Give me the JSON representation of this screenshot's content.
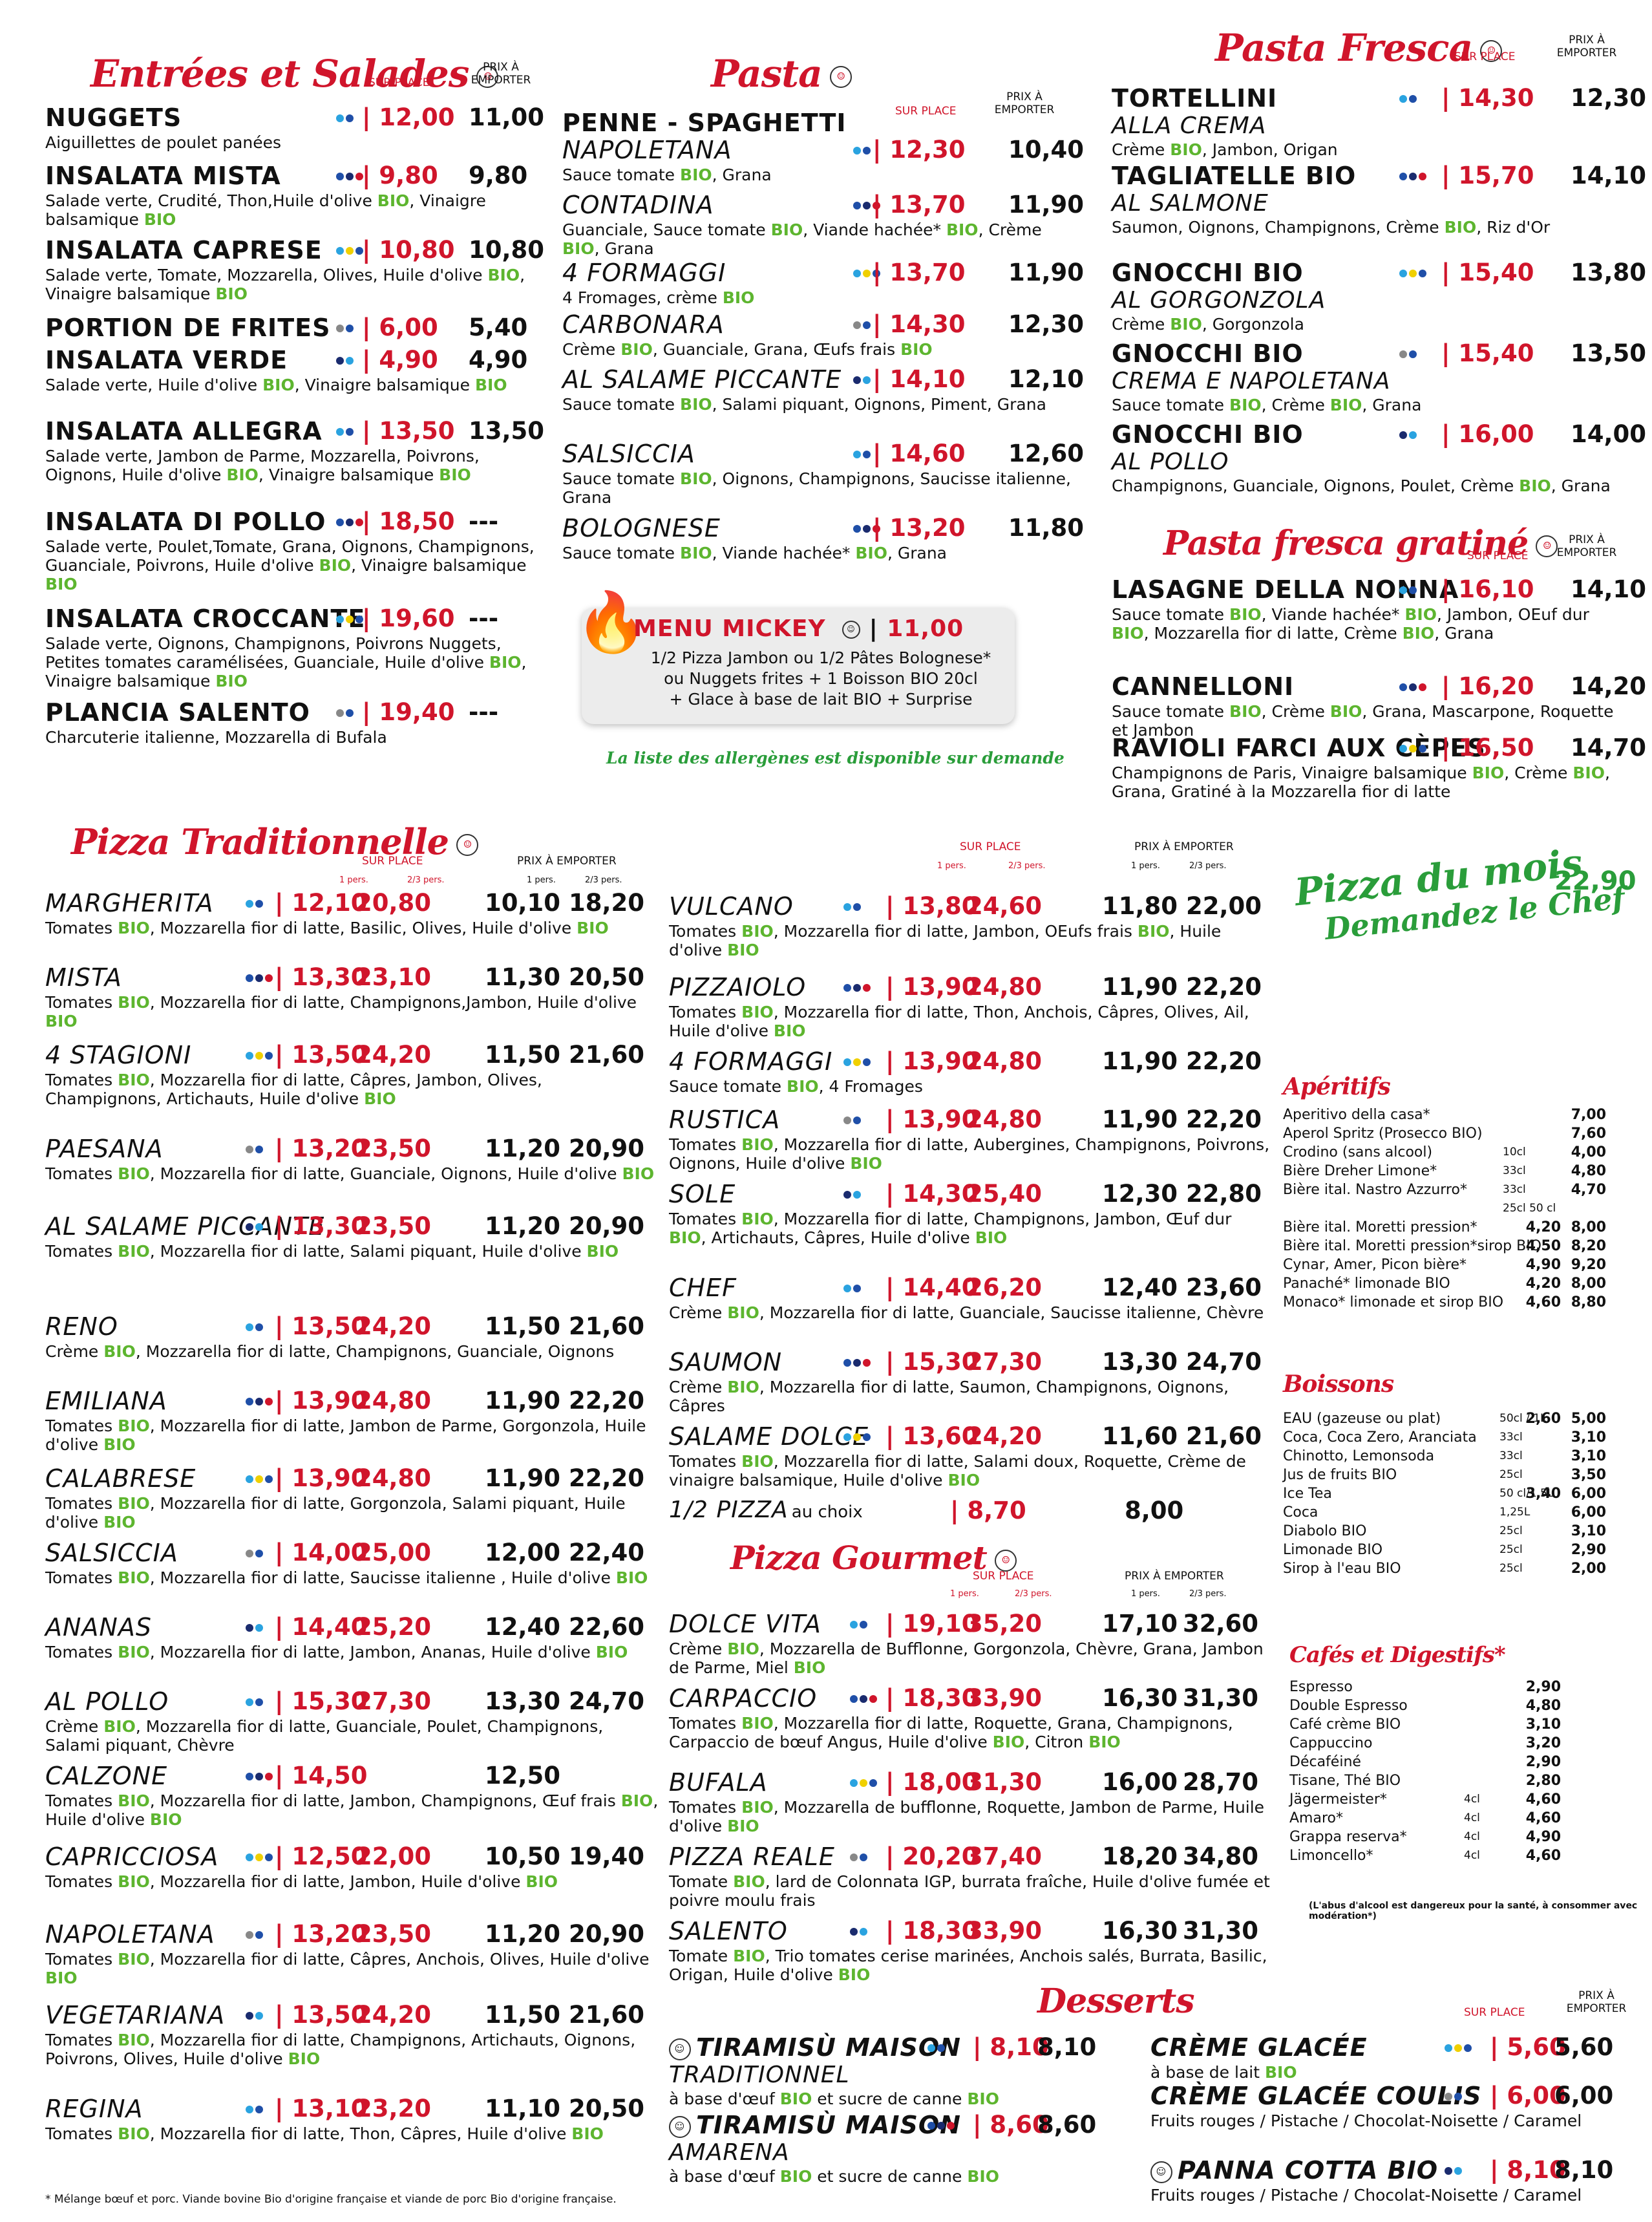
{
  "colors": {
    "red": "#d0152b",
    "green": "#5db52f",
    "title_green": "#2a9d3a"
  },
  "headers": {
    "sur_place": "SUR PLACE",
    "prix_emporter": "PRIX À EMPORTER",
    "pers1": "1 pers.",
    "pers23": "2/3 pers."
  },
  "entrees": {
    "title": "Entrées et Salades",
    "items": [
      {
        "name": "NUGGETS",
        "desc": "Aiguillettes de poulet panées",
        "sp": "12,00",
        "em": "11,00"
      },
      {
        "name": "INSALATA MISTA",
        "desc": "Salade verte, Crudité, Thon,Huile d'olive BIO, Vinaigre balsamique BIO",
        "sp": "9,80",
        "em": "9,80"
      },
      {
        "name": "INSALATA CAPRESE",
        "desc": "Salade verte, Tomate, Mozzarella, Olives, Huile d'olive BIO, Vinaigre balsamique BIO",
        "sp": "10,80",
        "em": "10,80"
      },
      {
        "name": "PORTION DE FRITES",
        "desc": "",
        "sp": "6,00",
        "em": "5,40"
      },
      {
        "name": "INSALATA VERDE",
        "desc": "Salade verte, Huile d'olive BIO, Vinaigre balsamique BIO",
        "sp": "4,90",
        "em": "4,90"
      },
      {
        "name": "INSALATA ALLEGRA",
        "desc": "Salade verte, Jambon de Parme, Mozzarella, Poivrons, Oignons, Huile d'olive BIO, Vinaigre balsamique BIO",
        "sp": "13,50",
        "em": "13,50"
      },
      {
        "name": "INSALATA DI POLLO",
        "desc": "Salade verte, Poulet,Tomate, Grana, Oignons, Champignons, Guanciale, Poivrons, Huile d'olive BIO, Vinaigre balsamique BIO",
        "sp": "18,50",
        "em": "---"
      },
      {
        "name": "INSALATA CROCCANTE",
        "desc": "Salade verte, Oignons, Champignons, Poivrons Nuggets, Petites tomates caramélisées, Guanciale, Huile d'olive BIO, Vinaigre balsamique BIO",
        "sp": "19,60",
        "em": "---"
      },
      {
        "name": "PLANCIA SALENTO",
        "desc": "Charcuterie italienne, Mozzarella di Bufala",
        "sp": "19,40",
        "em": "---"
      }
    ]
  },
  "pasta": {
    "title": "Pasta",
    "head": "PENNE - SPAGHETTI",
    "items": [
      {
        "name": "NAPOLETANA",
        "desc": "Sauce tomate BIO, Grana",
        "sp": "12,30",
        "em": "10,40"
      },
      {
        "name": "CONTADINA",
        "desc": "Guanciale, Sauce tomate BIO, Viande hachée* BIO, Crème BIO, Grana",
        "sp": "13,70",
        "em": "11,90"
      },
      {
        "name": "4 FORMAGGI",
        "desc": "4 Fromages, crème BIO",
        "sp": "13,70",
        "em": "11,90"
      },
      {
        "name": "CARBONARA",
        "desc": "Crème BIO, Guanciale, Grana, Œufs frais BIO",
        "sp": "14,30",
        "em": "12,30"
      },
      {
        "name": "AL SALAME PICCANTE",
        "desc": "Sauce tomate BIO, Salami piquant, Oignons, Piment, Grana",
        "sp": "14,10",
        "em": "12,10"
      },
      {
        "name": "SALSICCIA",
        "desc": "Sauce tomate BIO, Oignons, Champignons, Saucisse italienne, Grana",
        "sp": "14,60",
        "em": "12,60"
      },
      {
        "name": "BOLOGNESE",
        "desc": "Sauce tomate BIO, Viande hachée* BIO, Grana",
        "sp": "13,20",
        "em": "11,80"
      }
    ]
  },
  "mickey": {
    "title": "MENU MICKEY",
    "price": "11,00",
    "l1": "1/2 Pizza Jambon ou 1/2 Pâtes Bolognese*",
    "l2": "ou Nuggets frites + 1 Boisson BIO 20cl",
    "l3": "+ Glace à base de lait BIO + Surprise"
  },
  "allergen_note": "La liste des allergènes est disponible sur demande",
  "fresca": {
    "title": "Pasta Fresca",
    "items": [
      {
        "name": "TORTELLINI",
        "sub": "ALLA CREMA",
        "desc": "Crème BIO, Jambon, Origan",
        "sp": "14,30",
        "em": "12,30"
      },
      {
        "name": "TAGLIATELLE BIO",
        "sub": "AL SALMONE",
        "desc": "Saumon, Oignons, Champignons, Crème BIO, Riz d'Or",
        "sp": "15,70",
        "em": "14,10"
      },
      {
        "name": "GNOCCHI BIO",
        "sub": "AL GORGONZOLA",
        "desc": "Crème BIO, Gorgonzola",
        "sp": "15,40",
        "em": "13,80"
      },
      {
        "name": "GNOCCHI BIO",
        "sub": "CREMA E NAPOLETANA",
        "desc": "Sauce tomate BIO, Crème BIO, Grana",
        "sp": "15,40",
        "em": "13,50"
      },
      {
        "name": "GNOCCHI BIO",
        "sub": "AL POLLO",
        "desc": "Champignons, Guanciale, Oignons, Poulet, Crème BIO, Grana",
        "sp": "16,00",
        "em": "14,00"
      }
    ]
  },
  "gratine": {
    "title": "Pasta fresca gratiné",
    "items": [
      {
        "name": "LASAGNE DELLA NONNA",
        "desc": "Sauce tomate BIO, Viande hachée* BIO, Jambon, OEuf dur BIO, Mozzarella fior di latte, Crème BIO, Grana",
        "sp": "16,10",
        "em": "14,10"
      },
      {
        "name": "CANNELLONI",
        "desc": "Sauce tomate BIO, Crème BIO, Grana, Mascarpone, Roquette et Jambon",
        "sp": "16,20",
        "em": "14,20"
      },
      {
        "name": "RAVIOLI FARCI AUX CÈPES",
        "desc": "Champignons de Paris, Vinaigre balsamique BIO, Crème BIO, Grana, Gratiné à la Mozzarella fior di latte",
        "sp": "16,50",
        "em": "14,70"
      }
    ]
  },
  "pizza_trad": {
    "title": "Pizza Traditionnelle",
    "items": [
      {
        "name": "MARGHERITA",
        "desc": "Tomates BIO, Mozzarella fior di latte, Basilic, Olives, Huile d'olive BIO",
        "a": "12,10",
        "b": "20,80",
        "c": "10,10",
        "d": "18,20"
      },
      {
        "name": "MISTA",
        "desc": "Tomates BIO, Mozzarella fior di latte, Champignons,Jambon, Huile d'olive BIO",
        "a": "13,30",
        "b": "23,10",
        "c": "11,30",
        "d": "20,50"
      },
      {
        "name": "4 STAGIONI",
        "desc": "Tomates BIO, Mozzarella fior di latte, Câpres, Jambon, Olives, Champignons, Artichauts, Huile d'olive BIO",
        "a": "13,50",
        "b": "24,20",
        "c": "11,50",
        "d": "21,60"
      },
      {
        "name": "PAESANA",
        "desc": "Tomates BIO, Mozzarella fior di latte, Guanciale, Oignons, Huile d'olive BIO",
        "a": "13,20",
        "b": "23,50",
        "c": "11,20",
        "d": "20,90"
      },
      {
        "name": "AL SALAME PICCANTE",
        "desc": "Tomates BIO, Mozzarella fior di latte, Salami piquant, Huile d'olive BIO",
        "a": "13,30",
        "b": "23,50",
        "c": "11,20",
        "d": "20,90"
      },
      {
        "name": "RENO",
        "desc": "Crème BIO, Mozzarella fior di latte, Champignons, Guanciale, Oignons",
        "a": "13,50",
        "b": "24,20",
        "c": "11,50",
        "d": "21,60"
      },
      {
        "name": "EMILIANA",
        "desc": "Tomates BIO, Mozzarella fior di latte, Jambon de Parme, Gorgonzola, Huile d'olive BIO",
        "a": "13,90",
        "b": "24,80",
        "c": "11,90",
        "d": "22,20"
      },
      {
        "name": "CALABRESE",
        "desc": "Tomates BIO, Mozzarella fior di latte, Gorgonzola, Salami piquant, Huile d'olive BIO",
        "a": "13,90",
        "b": "24,80",
        "c": "11,90",
        "d": "22,20"
      },
      {
        "name": "SALSICCIA",
        "desc": "Tomates BIO, Mozzarella fior di latte, Saucisse italienne , Huile d'olive BIO",
        "a": "14,00",
        "b": "25,00",
        "c": "12,00",
        "d": "22,40"
      },
      {
        "name": "ANANAS",
        "desc": "Tomates BIO, Mozzarella fior di latte, Jambon, Ananas, Huile d'olive BIO",
        "a": "14,40",
        "b": "25,20",
        "c": "12,40",
        "d": "22,60"
      },
      {
        "name": "AL POLLO",
        "desc": "Crème BIO, Mozzarella fior di latte, Guanciale, Poulet, Champignons, Salami piquant, Chèvre",
        "a": "15,30",
        "b": "27,30",
        "c": "13,30",
        "d": "24,70"
      },
      {
        "name": "CALZONE",
        "desc": "Tomates BIO, Mozzarella fior di latte, Jambon, Champignons, Œuf frais BIO, Huile d'olive BIO",
        "a": "14,50",
        "b": "",
        "c": "12,50",
        "d": ""
      },
      {
        "name": "CAPRICCIOSA",
        "desc": "Tomates BIO, Mozzarella fior di latte, Jambon, Huile d'olive BIO",
        "a": "12,50",
        "b": "22,00",
        "c": "10,50",
        "d": "19,40"
      },
      {
        "name": "NAPOLETANA",
        "desc": "Tomates BIO, Mozzarella fior di latte, Câpres, Anchois, Olives, Huile d'olive BIO",
        "a": "13,20",
        "b": "23,50",
        "c": "11,20",
        "d": "20,90"
      },
      {
        "name": "VEGETARIANA",
        "desc": "Tomates BIO, Mozzarella fior di latte, Champignons, Artichauts, Oignons, Poivrons, Olives, Huile d'olive BIO",
        "a": "13,50",
        "b": "24,20",
        "c": "11,50",
        "d": "21,60"
      },
      {
        "name": "REGINA",
        "desc": "Tomates BIO, Mozzarella fior di latte, Thon, Câpres, Huile d'olive BIO",
        "a": "13,10",
        "b": "23,20",
        "c": "11,10",
        "d": "20,50"
      }
    ]
  },
  "pizza_trad2": {
    "items": [
      {
        "name": "VULCANO",
        "desc": "Tomates BIO, Mozzarella fior di latte, Jambon, OEufs frais BIO, Huile d'olive BIO",
        "a": "13,80",
        "b": "24,60",
        "c": "11,80",
        "d": "22,00"
      },
      {
        "name": "PIZZAIOLO",
        "desc": "Tomates BIO, Mozzarella fior di latte, Thon, Anchois, Câpres, Olives, Ail, Huile d'olive BIO",
        "a": "13,90",
        "b": "24,80",
        "c": "11,90",
        "d": "22,20"
      },
      {
        "name": "4 FORMAGGI",
        "desc": "Sauce tomate BIO, 4 Fromages",
        "a": "13,90",
        "b": "24,80",
        "c": "11,90",
        "d": "22,20"
      },
      {
        "name": "RUSTICA",
        "desc": "Tomates BIO, Mozzarella fior di latte, Aubergines, Champignons, Poivrons, Oignons, Huile d'olive BIO",
        "a": "13,90",
        "b": "24,80",
        "c": "11,90",
        "d": "22,20"
      },
      {
        "name": "SOLE",
        "desc": "Tomates BIO, Mozzarella fior di latte, Champignons, Jambon, Œuf dur BIO, Artichauts, Câpres, Huile d'olive BIO",
        "a": "14,30",
        "b": "25,40",
        "c": "12,30",
        "d": "22,80"
      },
      {
        "name": "CHEF",
        "desc": "Crème BIO, Mozzarella fior di latte, Guanciale, Saucisse italienne, Chèvre",
        "a": "14,40",
        "b": "26,20",
        "c": "12,40",
        "d": "23,60"
      },
      {
        "name": "SAUMON",
        "desc": "Crème BIO, Mozzarella fior di latte, Saumon, Champignons, Oignons, Câpres",
        "a": "15,30",
        "b": "27,30",
        "c": "13,30",
        "d": "24,70"
      },
      {
        "name": "SALAME DOLCE",
        "desc": "Tomates BIO, Mozzarella fior di latte, Salami doux, Roquette, Crème de vinaigre balsamique, Huile d'olive BIO",
        "a": "13,60",
        "b": "24,20",
        "c": "11,60",
        "d": "21,60"
      }
    ],
    "half": {
      "name": "1/2 PIZZA",
      "sub": "au choix",
      "a": "8,70",
      "c": "8,00"
    }
  },
  "gourmet": {
    "title": "Pizza Gourmet",
    "items": [
      {
        "name": "DOLCE VITA",
        "desc": "Crème BIO, Mozzarella de Bufflonne, Gorgonzola, Chèvre, Grana, Jambon de Parme, Miel BIO",
        "a": "19,10",
        "b": "35,20",
        "c": "17,10",
        "d": "32,60"
      },
      {
        "name": "CARPACCIO",
        "desc": "Tomates BIO, Mozzarella fior di latte, Roquette, Grana, Champignons, Carpaccio de bœuf Angus, Huile d'olive BIO, Citron BIO",
        "a": "18,30",
        "b": "33,90",
        "c": "16,30",
        "d": "31,30"
      },
      {
        "name": "BUFALA",
        "desc": "Tomates BIO, Mozzarella de bufflonne, Roquette, Jambon de Parme, Huile d'olive BIO",
        "a": "18,00",
        "b": "31,30",
        "c": "16,00",
        "d": "28,70"
      },
      {
        "name": "PIZZA REALE",
        "desc": "Tomate BIO, lard de Colonnata IGP, burrata fraîche, Huile d'olive fumée et poivre moulu frais",
        "a": "20,20",
        "b": "37,40",
        "c": "18,20",
        "d": "34,80"
      },
      {
        "name": "SALENTO",
        "desc": "Tomate BIO, Trio tomates cerise marinées, Anchois salés, Burrata, Basilic, Origan, Huile d'olive BIO",
        "a": "18,30",
        "b": "33,90",
        "c": "16,30",
        "d": "31,30"
      }
    ]
  },
  "mois": {
    "line1": "Pizza du mois",
    "line2": "Demandez le Chef",
    "price": "22,90"
  },
  "aperitifs": {
    "title": "Apéritifs",
    "rows": [
      {
        "n": "Aperitivo della casa*",
        "vol": "",
        "p1": "",
        "p2": "7,00"
      },
      {
        "n": "Aperol Spritz (Prosecco BIO)",
        "vol": "",
        "p1": "",
        "p2": "7,60"
      },
      {
        "n": "Crodino (sans alcool)",
        "vol": "10cl",
        "p1": "",
        "p2": "4,00"
      },
      {
        "n": "Bière Dreher Limone*",
        "vol": "33cl",
        "p1": "",
        "p2": "4,80"
      },
      {
        "n": "Bière ital. Nastro Azzurro*",
        "vol": "33cl",
        "p1": "",
        "p2": "4,70"
      },
      {
        "n": "",
        "vol": "25cl   50 cl",
        "p1": "",
        "p2": ""
      },
      {
        "n": "Bière ital. Moretti pression*",
        "vol": "",
        "p1": "4,20",
        "p2": "8,00"
      },
      {
        "n": "Bière ital. Moretti pression*sirop BIO",
        "vol": "",
        "p1": "4,50",
        "p2": "8,20"
      },
      {
        "n": "Cynar, Amer, Picon bière*",
        "vol": "",
        "p1": "4,90",
        "p2": "9,20"
      },
      {
        "n": "Panaché* limonade BIO",
        "vol": "",
        "p1": "4,20",
        "p2": "8,00"
      },
      {
        "n": "Monaco* limonade et sirop BIO",
        "vol": "",
        "p1": "4,60",
        "p2": "8,80"
      }
    ]
  },
  "boissons": {
    "title": "Boissons",
    "rows": [
      {
        "n": "EAU (gazeuse ou plat)",
        "vol": "50cl / 1L",
        "p1": "2,60",
        "p2": "5,00"
      },
      {
        "n": "Coca, Coca Zero, Aranciata",
        "vol": "33cl",
        "p1": "",
        "p2": "3,10"
      },
      {
        "n": "Chinotto, Lemonsoda",
        "vol": "33cl",
        "p1": "",
        "p2": "3,10"
      },
      {
        "n": "Jus de fruits BIO",
        "vol": "25cl",
        "p1": "",
        "p2": "3,50"
      },
      {
        "n": "Ice Tea",
        "vol": "50 cl/1,5L",
        "p1": "3,40",
        "p2": "6,00"
      },
      {
        "n": "Coca",
        "vol": "1,25L",
        "p1": "",
        "p2": "6,00"
      },
      {
        "n": "Diabolo BIO",
        "vol": "25cl",
        "p1": "",
        "p2": "3,10"
      },
      {
        "n": "Limonade BIO",
        "vol": "25cl",
        "p1": "",
        "p2": "2,90"
      },
      {
        "n": "Sirop à l'eau BIO",
        "vol": "25cl",
        "p1": "",
        "p2": "2,00"
      }
    ]
  },
  "cafes": {
    "title": "Cafés et Digestifs*",
    "rows": [
      {
        "n": "Espresso",
        "vol": "",
        "p": "2,90"
      },
      {
        "n": "Double Espresso",
        "vol": "",
        "p": "4,80"
      },
      {
        "n": "Café crème BIO",
        "vol": "",
        "p": "3,10"
      },
      {
        "n": "Cappuccino",
        "vol": "",
        "p": "3,20"
      },
      {
        "n": "Décaféiné",
        "vol": "",
        "p": "2,90"
      },
      {
        "n": "Tisane, Thé BIO",
        "vol": "",
        "p": "2,80"
      },
      {
        "n": "Jägermeister*",
        "vol": "4cl",
        "p": "4,60"
      },
      {
        "n": "Amaro*",
        "vol": "4cl",
        "p": "4,60"
      },
      {
        "n": "Grappa reserva*",
        "vol": "4cl",
        "p": "4,90"
      },
      {
        "n": "Limoncello*",
        "vol": "4cl",
        "p": "4,60"
      }
    ],
    "note": "(L'abus d'alcool est dangereux pour la santé, à consommer avec modération*)"
  },
  "desserts": {
    "title": "Desserts",
    "items": [
      {
        "name": "TIRAMISÙ MAISON",
        "sub": "TRADITIONNEL",
        "desc": "à base d'œuf BIO et sucre de canne BIO",
        "sp": "8,10",
        "em": "8,10"
      },
      {
        "name": "TIRAMISÙ MAISON",
        "sub": "AMARENA",
        "desc": "à base d'œuf BIO et sucre de canne BIO",
        "sp": "8,60",
        "em": "8,60"
      },
      {
        "name": "CRÈME GLACÉE",
        "sub": "",
        "desc": "à base de lait BIO",
        "sp": "5,60",
        "em": "5,60"
      },
      {
        "name": "CRÈME GLACÉE COULIS",
        "sub": "",
        "desc": "Fruits rouges / Pistache / Chocolat-Noisette / Caramel",
        "sp": "6,00",
        "em": "6,00"
      },
      {
        "name": "PANNA COTTA BIO",
        "sub": "",
        "desc": "Fruits rouges / Pistache / Chocolat-Noisette / Caramel",
        "sp": "8,10",
        "em": "8,10"
      }
    ]
  },
  "footnote": "* Mélange bœuf et porc. Viande bovine Bio d'origine française et viande de porc Bio d'origine française."
}
